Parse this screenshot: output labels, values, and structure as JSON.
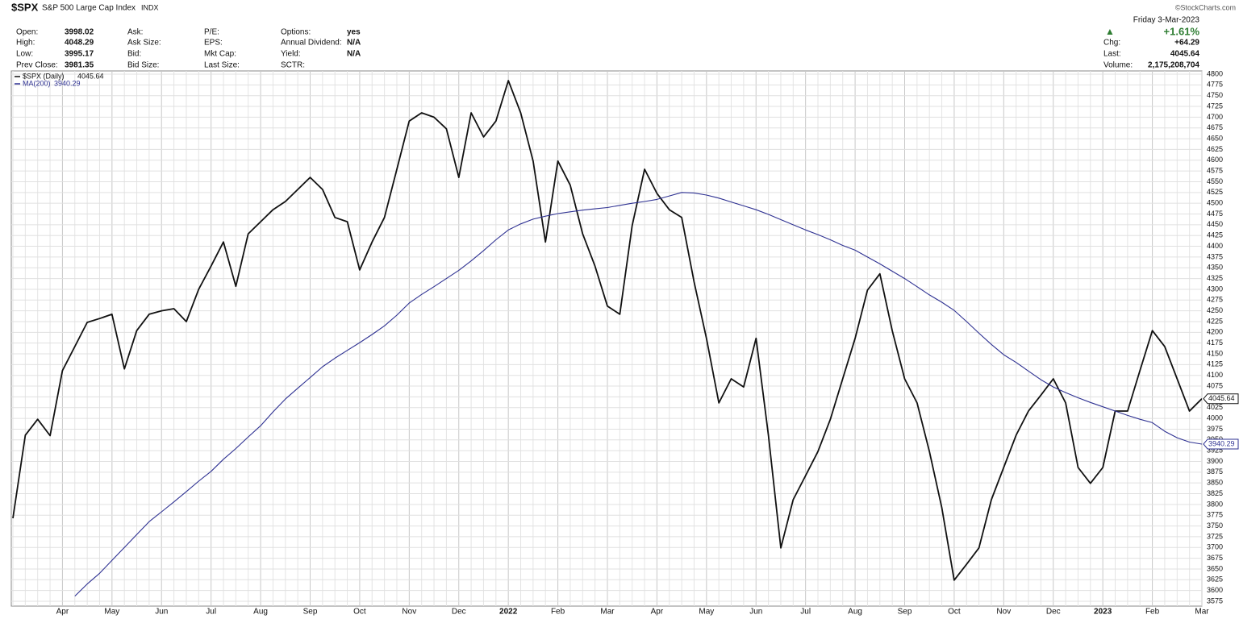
{
  "header": {
    "symbol": "$SPX",
    "name": "S&P 500 Large Cap Index",
    "exchange": "INDX",
    "copyright": "©StockCharts.com",
    "date": "Friday  3-Mar-2023",
    "quote": [
      [
        "Open:",
        "3998.02"
      ],
      [
        "High:",
        "4048.29"
      ],
      [
        "Low:",
        "3995.17"
      ],
      [
        "Prev Close:",
        "3981.35"
      ]
    ],
    "col2": [
      "Ask:",
      "Ask Size:",
      "Bid:",
      "Bid Size:"
    ],
    "col3": [
      "P/E:",
      "EPS:",
      "Mkt Cap:",
      "Last Size:"
    ],
    "col4_labels": [
      "Options:",
      "Annual Dividend:",
      "Yield:",
      "SCTR:"
    ],
    "col4_values": [
      "yes",
      "N/A",
      "N/A"
    ],
    "change_pct": "+1.61%",
    "right": [
      [
        "Chg:",
        "+64.29"
      ],
      [
        "Last:",
        "4045.64"
      ],
      [
        "Volume:",
        "2,175,208,704"
      ]
    ]
  },
  "chart_data": {
    "type": "line",
    "categories": [
      null,
      null,
      null,
      null,
      "Apr",
      null,
      null,
      null,
      "May",
      null,
      null,
      null,
      "Jun",
      null,
      null,
      null,
      "Jul",
      null,
      null,
      null,
      "Aug",
      null,
      null,
      null,
      "Sep",
      null,
      null,
      null,
      "Oct",
      null,
      null,
      null,
      "Nov",
      null,
      null,
      null,
      "Dec",
      null,
      null,
      null,
      "2022",
      null,
      null,
      null,
      "Feb",
      null,
      null,
      null,
      "Mar",
      null,
      null,
      null,
      "Apr",
      null,
      null,
      null,
      "May",
      null,
      null,
      null,
      "Jun",
      null,
      null,
      null,
      "Jul",
      null,
      null,
      null,
      "Aug",
      null,
      null,
      null,
      "Sep",
      null,
      null,
      null,
      "Oct",
      null,
      null,
      null,
      "Nov",
      null,
      null,
      null,
      "Dec",
      null,
      null,
      null,
      "2023",
      null,
      null,
      null,
      "Feb",
      null,
      null,
      null,
      "Mar"
    ],
    "series": [
      {
        "name": "$SPX (Daily)",
        "color": "#111111",
        "values": [
          3768,
          3961,
          3998,
          3960,
          4111,
          4167,
          4223,
          4232,
          4242,
          4115,
          4204,
          4242,
          4250,
          4255,
          4225,
          4300,
          4354,
          4410,
          4307,
          4429,
          4457,
          4485,
          4504,
          4532,
          4560,
          4532,
          4467,
          4457,
          4345,
          4410,
          4467,
          4579,
          4691,
          4710,
          4700,
          4673,
          4560,
          4710,
          4654,
          4691,
          4785,
          4710,
          4598,
          4410,
          4598,
          4542,
          4429,
          4354,
          4261,
          4242,
          4448,
          4579,
          4523,
          4485,
          4467,
          4317,
          4186,
          4036,
          4092,
          4073,
          4186,
          3961,
          3699,
          3811,
          3867,
          3923,
          3998,
          4092,
          4186,
          4298,
          4336,
          4204,
          4092,
          4036,
          3923,
          3792,
          3624,
          3661,
          3699,
          3811,
          3886,
          3961,
          4017,
          4054,
          4092,
          4036,
          3886,
          3849,
          3886,
          4017,
          4017,
          4111,
          4204,
          4167,
          4092,
          4017,
          4045.64
        ]
      },
      {
        "name": "MA(200)",
        "color": "#2e3192",
        "values": [
          null,
          null,
          null,
          null,
          null,
          3587,
          3615,
          3640,
          3670,
          3700,
          3730,
          3760,
          3783,
          3806,
          3830,
          3854,
          3877,
          3905,
          3930,
          3957,
          3983,
          4015,
          4045,
          4070,
          4095,
          4120,
          4140,
          4158,
          4176,
          4195,
          4215,
          4240,
          4268,
          4288,
          4306,
          4325,
          4344,
          4366,
          4390,
          4415,
          4438,
          4452,
          4463,
          4470,
          4476,
          4480,
          4484,
          4487,
          4490,
          4495,
          4500,
          4504,
          4509,
          4517,
          4525,
          4524,
          4519,
          4512,
          4503,
          4494,
          4485,
          4474,
          4462,
          4450,
          4438,
          4427,
          4415,
          4402,
          4391,
          4375,
          4359,
          4342,
          4325,
          4306,
          4287,
          4270,
          4251,
          4225,
          4198,
          4172,
          4148,
          4130,
          4110,
          4090,
          4073,
          4060,
          4048,
          4037,
          4027,
          4017,
          4007,
          3998,
          3990,
          3970,
          3955,
          3945,
          3940.29
        ]
      }
    ],
    "ylim": [
      3575,
      4800
    ],
    "yticks": [
      3575,
      3600,
      3625,
      3650,
      3675,
      3700,
      3725,
      3750,
      3775,
      3800,
      3825,
      3850,
      3875,
      3900,
      3925,
      3950,
      3975,
      4000,
      4025,
      4050,
      4075,
      4100,
      4125,
      4150,
      4175,
      4200,
      4225,
      4250,
      4275,
      4300,
      4325,
      4350,
      4375,
      4400,
      4425,
      4450,
      4475,
      4500,
      4525,
      4550,
      4575,
      4600,
      4625,
      4650,
      4675,
      4700,
      4725,
      4750,
      4775,
      4800
    ],
    "grid": true
  }
}
